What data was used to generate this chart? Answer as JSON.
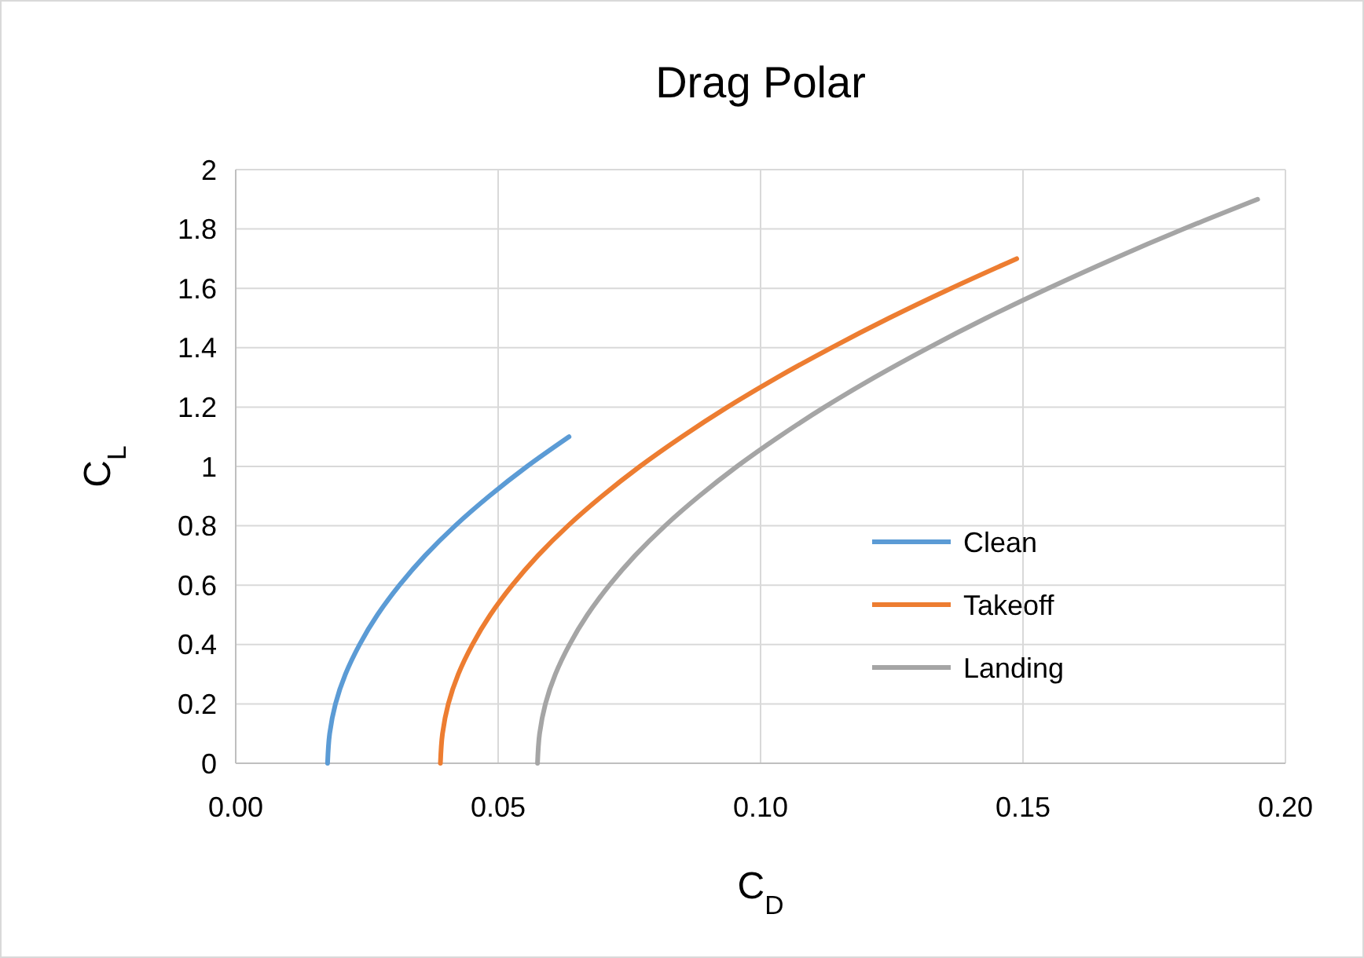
{
  "chart_data": {
    "type": "line",
    "title": "Drag Polar",
    "xlabel": "C$_{D}$",
    "ylabel": "C$_{L}$",
    "xlim": [
      0,
      0.2
    ],
    "xticks": [
      {
        "value": 0,
        "label": "0.00"
      },
      {
        "value": 0.05,
        "label": "0.05"
      },
      {
        "value": 0.1,
        "label": "0.10"
      },
      {
        "value": 0.15,
        "label": "0.15"
      },
      {
        "value": 0.2,
        "label": "0.20"
      }
    ],
    "ylim": [
      0,
      2
    ],
    "yticks": [
      0,
      0.2,
      0.4,
      0.6,
      0.8,
      1,
      1.2,
      1.4,
      1.6,
      1.8,
      2
    ],
    "grid": true,
    "legend": "right",
    "marker": "none",
    "line_style": "solid",
    "series": [
      {
        "name": "Clean",
        "color": "#5b9bd5",
        "x": [
          0.0175,
          0.0179,
          0.019,
          0.0209,
          0.0236,
          0.027,
          0.0312,
          0.0361,
          0.0418,
          0.0483,
          0.0555,
          0.0635
        ],
        "values": [
          0,
          0.1,
          0.2,
          0.3,
          0.4,
          0.5,
          0.6,
          0.7,
          0.8,
          0.9,
          1,
          1.1
        ]
      },
      {
        "name": "Takeoff",
        "color": "#ed7d31",
        "x": [
          0.039,
          0.0394,
          0.0405,
          0.0424,
          0.0451,
          0.0485,
          0.0527,
          0.0576,
          0.0633,
          0.0698,
          0.077,
          0.085,
          0.0937,
          0.1032,
          0.1135,
          0.1245,
          0.1363,
          0.1488
        ],
        "values": [
          0,
          0.1,
          0.2,
          0.3,
          0.4,
          0.5,
          0.6,
          0.7,
          0.8,
          0.9,
          1,
          1.1,
          1.2,
          1.3,
          1.4,
          1.5,
          1.6,
          1.7
        ]
      },
      {
        "name": "Landing",
        "color": "#a5a5a5",
        "x": [
          0.0575,
          0.0579,
          0.059,
          0.0609,
          0.0636,
          0.067,
          0.0712,
          0.0761,
          0.0818,
          0.0883,
          0.0955,
          0.1035,
          0.1122,
          0.1217,
          0.132,
          0.143,
          0.1548,
          0.1673,
          0.1806,
          0.1947
        ],
        "values": [
          0,
          0.1,
          0.2,
          0.3,
          0.4,
          0.5,
          0.6,
          0.7,
          0.8,
          0.9,
          1,
          1.1,
          1.2,
          1.3,
          1.4,
          1.5,
          1.6,
          1.7,
          1.8,
          1.9
        ]
      }
    ]
  }
}
